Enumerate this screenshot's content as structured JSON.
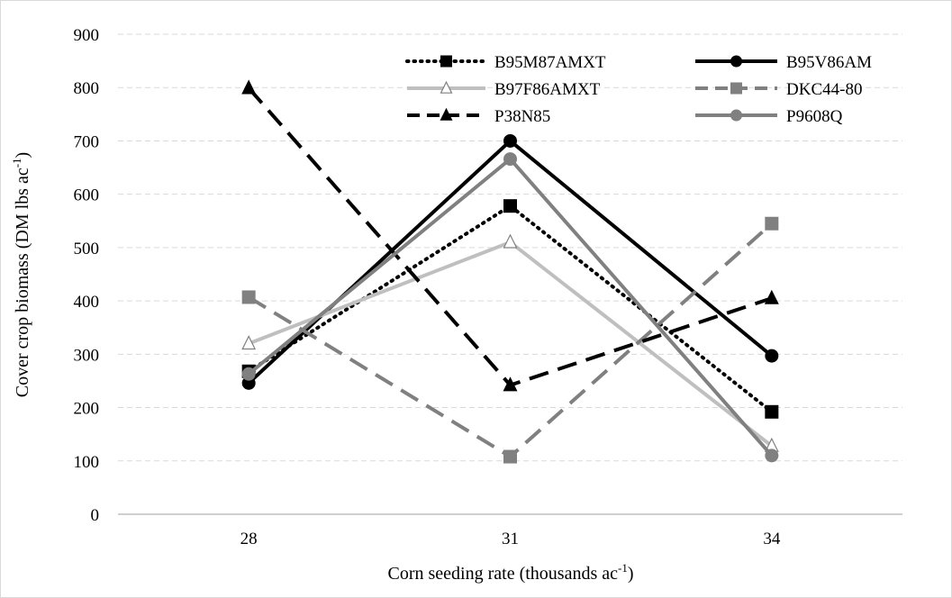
{
  "chart_data": {
    "type": "line",
    "title": "",
    "xlabel": "Corn seeding rate (thousands ac",
    "xlabel_sup": "-1",
    "xlabel_end": ")",
    "ylabel": "Cover crop biomass (DM lbs ac",
    "ylabel_sup": "-1",
    "ylabel_end": ")",
    "categories": [
      "28",
      "31",
      "34"
    ],
    "ylim": [
      0,
      900
    ],
    "yticks": [
      0,
      100,
      200,
      300,
      400,
      500,
      600,
      700,
      800,
      900
    ],
    "grid": "horizontal dashed",
    "legend_position": "top-right",
    "series": [
      {
        "name": "B95M87AMXT",
        "values": [
          268,
          578,
          192
        ],
        "color": "#000000",
        "dash": "dotted",
        "marker": "square",
        "marker_fill": "#000000"
      },
      {
        "name": "B95V86AM",
        "values": [
          246,
          700,
          297
        ],
        "color": "#000000",
        "dash": "solid",
        "marker": "circle",
        "marker_fill": "#000000"
      },
      {
        "name": "B97F86AMXT",
        "values": [
          320,
          510,
          128
        ],
        "color": "#bfbfbf",
        "dash": "solid",
        "marker": "triangle",
        "marker_fill": "#ffffff"
      },
      {
        "name": "DKC44-80",
        "values": [
          407,
          108,
          545
        ],
        "color": "#808080",
        "dash": "dashed",
        "marker": "square",
        "marker_fill": "#808080"
      },
      {
        "name": "P38N85",
        "values": [
          799,
          242,
          405
        ],
        "color": "#000000",
        "dash": "dashed",
        "marker": "triangle",
        "marker_fill": "#000000"
      },
      {
        "name": "P9608Q",
        "values": [
          263,
          666,
          110
        ],
        "color": "#808080",
        "dash": "solid",
        "marker": "circle",
        "marker_fill": "#808080"
      }
    ]
  }
}
